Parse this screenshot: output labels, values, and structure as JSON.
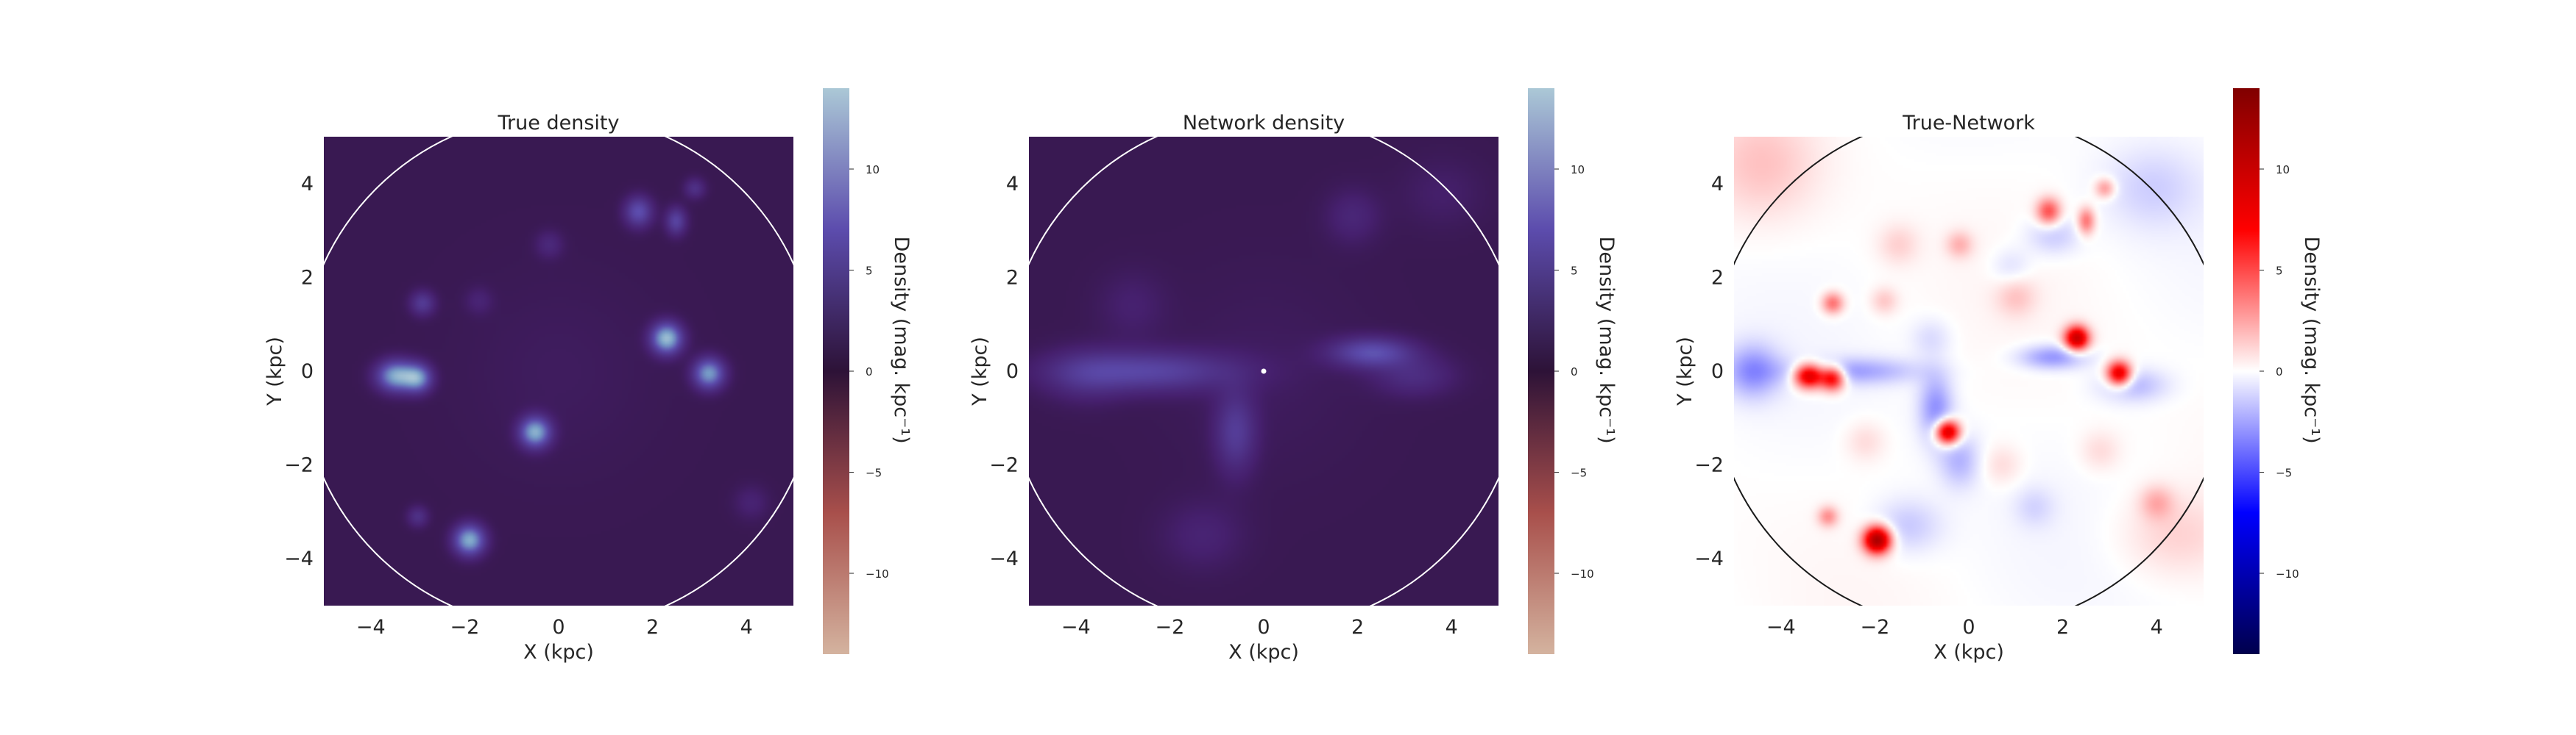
{
  "figure": {
    "panels": [
      {
        "title": "True density",
        "colormap": "twilight_shifted",
        "circle_color": "#ffffff",
        "center_marker": false,
        "blobs": [
          {
            "x": -3.45,
            "y": -0.1,
            "sx": 0.28,
            "sy": 0.22,
            "amp": 11
          },
          {
            "x": -3.0,
            "y": -0.15,
            "sx": 0.2,
            "sy": 0.2,
            "amp": 9
          },
          {
            "x": 2.3,
            "y": 0.7,
            "sx": 0.22,
            "sy": 0.22,
            "amp": 12
          },
          {
            "x": 3.2,
            "y": -0.05,
            "sx": 0.22,
            "sy": 0.22,
            "amp": 10
          },
          {
            "x": -0.5,
            "y": -1.3,
            "sx": 0.22,
            "sy": 0.22,
            "amp": 11
          },
          {
            "x": -1.9,
            "y": -3.6,
            "sx": 0.22,
            "sy": 0.22,
            "amp": 11
          },
          {
            "x": 1.7,
            "y": 3.4,
            "sx": 0.2,
            "sy": 0.22,
            "amp": 6
          },
          {
            "x": 2.5,
            "y": 3.2,
            "sx": 0.15,
            "sy": 0.2,
            "amp": 5
          },
          {
            "x": 2.9,
            "y": 3.9,
            "sx": 0.15,
            "sy": 0.15,
            "amp": 3
          },
          {
            "x": -2.9,
            "y": 1.45,
            "sx": 0.18,
            "sy": 0.18,
            "amp": 4
          },
          {
            "x": -3.0,
            "y": -3.1,
            "sx": 0.15,
            "sy": 0.15,
            "amp": 3
          },
          {
            "x": -0.2,
            "y": 2.7,
            "sx": 0.2,
            "sy": 0.2,
            "amp": 2
          },
          {
            "x": 4.1,
            "y": -2.8,
            "sx": 0.25,
            "sy": 0.25,
            "amp": 1.5
          },
          {
            "x": -1.7,
            "y": 1.5,
            "sx": 0.2,
            "sy": 0.2,
            "amp": 1.5
          }
        ]
      },
      {
        "title": "Network density",
        "colormap": "twilight_shifted",
        "circle_color": "#ffffff",
        "center_marker": true,
        "blobs": [
          {
            "x": -2.5,
            "y": 0.0,
            "sx": 1.3,
            "sy": 0.3,
            "amp": 5
          },
          {
            "x": -3.8,
            "y": -0.1,
            "sx": 0.6,
            "sy": 0.4,
            "amp": 2
          },
          {
            "x": 2.3,
            "y": 0.4,
            "sx": 0.6,
            "sy": 0.22,
            "amp": 6
          },
          {
            "x": -0.6,
            "y": -1.3,
            "sx": 0.3,
            "sy": 0.6,
            "amp": 4
          },
          {
            "x": 3.2,
            "y": -0.1,
            "sx": 0.6,
            "sy": 0.3,
            "amp": 2.5
          },
          {
            "x": 1.9,
            "y": 3.3,
            "sx": 0.4,
            "sy": 0.4,
            "amp": 1.8
          },
          {
            "x": -1.3,
            "y": -3.5,
            "sx": 0.6,
            "sy": 0.5,
            "amp": 1.5
          },
          {
            "x": -2.8,
            "y": 1.4,
            "sx": 0.5,
            "sy": 0.5,
            "amp": 1.2
          },
          {
            "x": 3.8,
            "y": 3.8,
            "sx": 0.6,
            "sy": 0.5,
            "amp": 1.0
          }
        ]
      },
      {
        "title": "True-Network",
        "colormap": "seismic",
        "circle_color": "#1a1a1a",
        "center_marker": false,
        "blobs": [
          {
            "x": -3.4,
            "y": -0.1,
            "sx": 0.22,
            "sy": 0.18,
            "amp": 10
          },
          {
            "x": -2.9,
            "y": -0.15,
            "sx": 0.18,
            "sy": 0.18,
            "amp": 8
          },
          {
            "x": -1.95,
            "y": -3.6,
            "sx": 0.2,
            "sy": 0.2,
            "amp": 12
          },
          {
            "x": 2.3,
            "y": 0.7,
            "sx": 0.18,
            "sy": 0.18,
            "amp": 10
          },
          {
            "x": 3.2,
            "y": -0.05,
            "sx": 0.18,
            "sy": 0.18,
            "amp": 9
          },
          {
            "x": -0.45,
            "y": -1.3,
            "sx": 0.18,
            "sy": 0.18,
            "amp": 10
          },
          {
            "x": 1.7,
            "y": 3.4,
            "sx": 0.18,
            "sy": 0.2,
            "amp": 5
          },
          {
            "x": 2.5,
            "y": 3.2,
            "sx": 0.13,
            "sy": 0.2,
            "amp": 4
          },
          {
            "x": 2.9,
            "y": 3.9,
            "sx": 0.15,
            "sy": 0.15,
            "amp": 3
          },
          {
            "x": -2.9,
            "y": 1.45,
            "sx": 0.16,
            "sy": 0.16,
            "amp": 4
          },
          {
            "x": -3.0,
            "y": -3.1,
            "sx": 0.15,
            "sy": 0.15,
            "amp": 3
          },
          {
            "x": -0.2,
            "y": 2.7,
            "sx": 0.2,
            "sy": 0.2,
            "amp": 2
          },
          {
            "x": 4.0,
            "y": -2.8,
            "sx": 0.25,
            "sy": 0.25,
            "amp": 2
          },
          {
            "x": -1.8,
            "y": 1.5,
            "sx": 0.2,
            "sy": 0.2,
            "amp": 1.5
          },
          {
            "x": -2.5,
            "y": 0.0,
            "sx": 1.0,
            "sy": 0.2,
            "amp": -2.5
          },
          {
            "x": -4.6,
            "y": 0.0,
            "sx": 0.4,
            "sy": 0.4,
            "amp": -3
          },
          {
            "x": 1.8,
            "y": 0.3,
            "sx": 0.5,
            "sy": 0.18,
            "amp": -3
          },
          {
            "x": 3.5,
            "y": -0.3,
            "sx": 0.5,
            "sy": 0.25,
            "amp": -2
          },
          {
            "x": -0.7,
            "y": -0.8,
            "sx": 0.25,
            "sy": 0.5,
            "amp": -3
          },
          {
            "x": -0.2,
            "y": -1.9,
            "sx": 0.3,
            "sy": 0.4,
            "amp": -2
          },
          {
            "x": -1.3,
            "y": -3.3,
            "sx": 0.5,
            "sy": 0.4,
            "amp": -1.5
          },
          {
            "x": 1.8,
            "y": 2.9,
            "sx": 0.4,
            "sy": 0.3,
            "amp": -1.5
          },
          {
            "x": 3.9,
            "y": 3.9,
            "sx": 0.7,
            "sy": 0.6,
            "amp": -1.2
          },
          {
            "x": -4.4,
            "y": 4.4,
            "sx": 0.8,
            "sy": 0.8,
            "amp": 1.5
          },
          {
            "x": 4.4,
            "y": -3.5,
            "sx": 0.8,
            "sy": 0.6,
            "amp": 1.2
          },
          {
            "x": 1.0,
            "y": 1.6,
            "sx": 0.3,
            "sy": 0.3,
            "amp": 1.5
          },
          {
            "x": -1.5,
            "y": 2.7,
            "sx": 0.3,
            "sy": 0.3,
            "amp": 1.2
          },
          {
            "x": 0.7,
            "y": -2.0,
            "sx": 0.3,
            "sy": 0.3,
            "amp": 1.0
          },
          {
            "x": -2.2,
            "y": -1.5,
            "sx": 0.3,
            "sy": 0.3,
            "amp": 1.0
          },
          {
            "x": 2.8,
            "y": -1.7,
            "sx": 0.3,
            "sy": 0.3,
            "amp": 1.0
          },
          {
            "x": 0.9,
            "y": 2.2,
            "sx": 0.3,
            "sy": 0.3,
            "amp": -1.0
          },
          {
            "x": -0.8,
            "y": 0.7,
            "sx": 0.3,
            "sy": 0.3,
            "amp": -1.0
          },
          {
            "x": 1.4,
            "y": -2.9,
            "sx": 0.3,
            "sy": 0.3,
            "amp": -1.0
          }
        ]
      }
    ]
  },
  "chart_data": {
    "type": "heatmap",
    "panels": [
      {
        "title": "True density",
        "xlabel": "X (kpc)",
        "ylabel": "Y (kpc)",
        "xlim": [
          -5,
          5
        ],
        "ylim": [
          -5,
          5
        ]
      },
      {
        "title": "Network density",
        "xlabel": "X (kpc)",
        "ylabel": "Y (kpc)",
        "xlim": [
          -5,
          5
        ],
        "ylim": [
          -5,
          5
        ]
      },
      {
        "title": "True-Network",
        "xlabel": "X (kpc)",
        "ylabel": "Y (kpc)",
        "xlim": [
          -5,
          5
        ],
        "ylim": [
          -5,
          5
        ]
      }
    ],
    "xticks": [
      "−4",
      "−2",
      "0",
      "2",
      "4"
    ],
    "yticks": [
      "4",
      "2",
      "0",
      "−2",
      "−4"
    ],
    "colorbar": {
      "label": "Density (mag. kpc⁻¹)",
      "ticks": [
        "10",
        "5",
        "0",
        "−5",
        "−10"
      ],
      "range": [
        -14,
        14
      ]
    },
    "circle_radius": 5.5,
    "grid": false
  }
}
